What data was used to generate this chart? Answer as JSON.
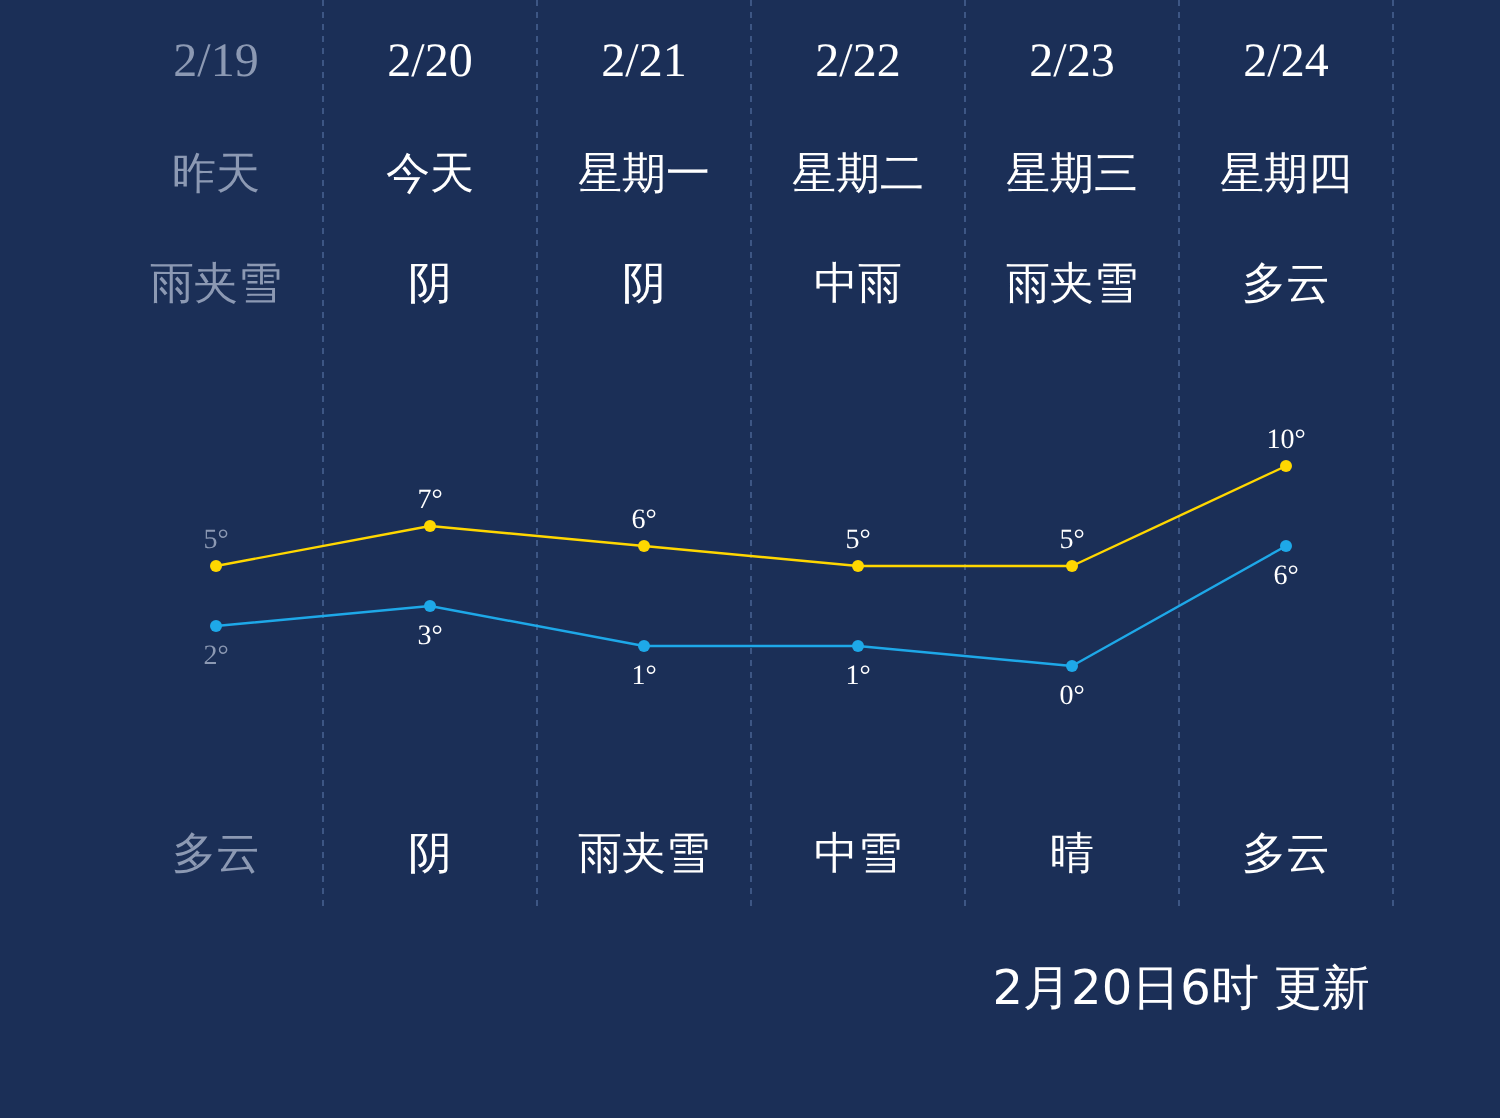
{
  "chart_data": {
    "type": "line",
    "categories": [
      "2/19",
      "2/20",
      "2/21",
      "2/22",
      "2/23",
      "2/24"
    ],
    "series": [
      {
        "color": "#ffd700",
        "values": [
          5,
          7,
          6,
          5,
          5,
          10
        ],
        "value_labels": [
          "5°",
          "7°",
          "6°",
          "5°",
          "5°",
          "10°"
        ]
      },
      {
        "color": "#1ea8e8",
        "values": [
          2,
          3,
          1,
          1,
          0,
          6
        ],
        "value_labels": [
          "2°",
          "3°",
          "1°",
          "1°",
          "0°",
          "6°"
        ]
      }
    ],
    "marker": "circle",
    "grid": "x",
    "annotations": [
      "昨天",
      "今天",
      "星期一",
      "星期二",
      "星期三",
      "星期四",
      "雨夹雪",
      "阴",
      "阴",
      "中雨",
      "雨夹雪",
      "多云",
      "多云",
      "阴",
      "雨夹雪",
      "中雪",
      "晴",
      "多云",
      "2月20日6时 更新"
    ]
  }
}
